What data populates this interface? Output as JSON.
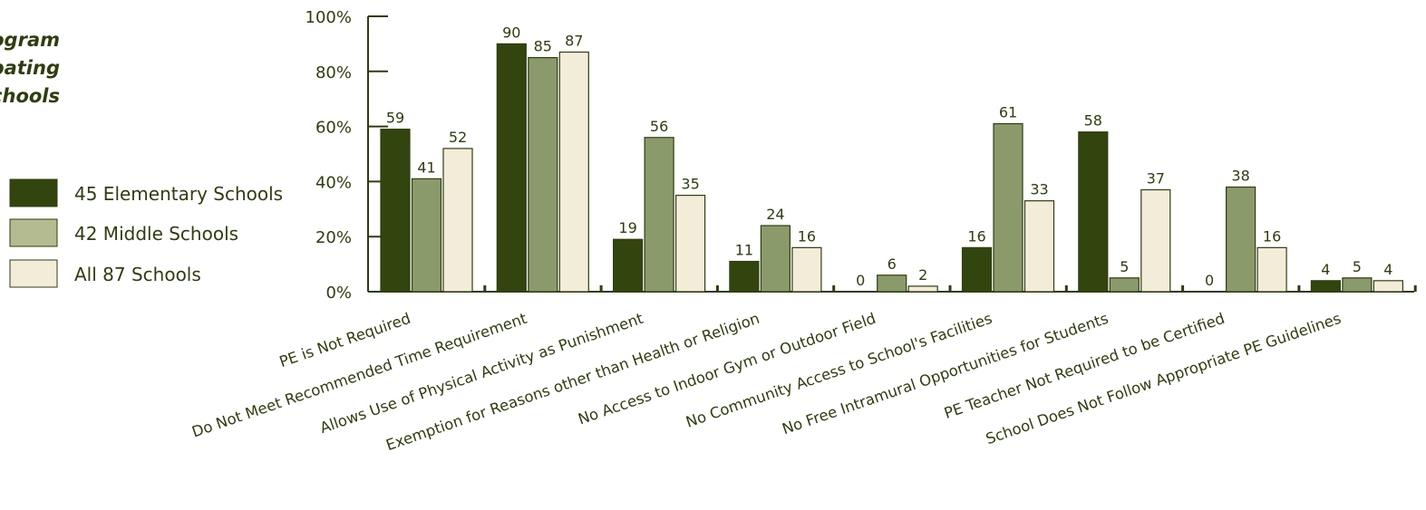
{
  "colors": {
    "text": "#2f3d10",
    "axis": "#2f3d10",
    "outline": "#2f3d10",
    "series": [
      "#33450f",
      "#8b9a6b",
      "#f3ecd9"
    ],
    "legend_swatches": [
      "#33450f",
      "#b5bb90",
      "#f3ecd9"
    ]
  },
  "title": {
    "lines": [
      "ogram",
      "pating",
      "chools"
    ]
  },
  "chart_data": {
    "type": "bar",
    "title": "",
    "xlabel": "",
    "ylabel": "",
    "ylim": [
      0,
      100
    ],
    "y_ticks": [
      0,
      20,
      40,
      60,
      80,
      100
    ],
    "y_tick_labels": [
      "0%",
      "20%",
      "40%",
      "60%",
      "80%",
      "100%"
    ],
    "grid": false,
    "legend_position": "left",
    "categories": [
      "PE is Not Required",
      "Do Not Meet Recommended Time Requirement",
      "Allows Use of Physical Activity as Punishment",
      "Exemption for Reasons other than Health or Religion",
      "No Access to Indoor Gym or Outdoor Field",
      "No Community Access to School's Facilities",
      "No Free Intramural Opportunities for Students",
      "PE Teacher Not Required to be Certified",
      "School Does Not Follow Appropriate PE Guidelines"
    ],
    "series": [
      {
        "name": "45 Elementary Schools",
        "values": [
          59,
          90,
          19,
          11,
          0,
          16,
          58,
          0,
          4
        ]
      },
      {
        "name": "42 Middle Schools",
        "values": [
          41,
          85,
          56,
          24,
          6,
          61,
          5,
          38,
          5
        ]
      },
      {
        "name": "All 87 Schools",
        "values": [
          52,
          87,
          35,
          16,
          2,
          33,
          37,
          16,
          4
        ]
      }
    ]
  }
}
